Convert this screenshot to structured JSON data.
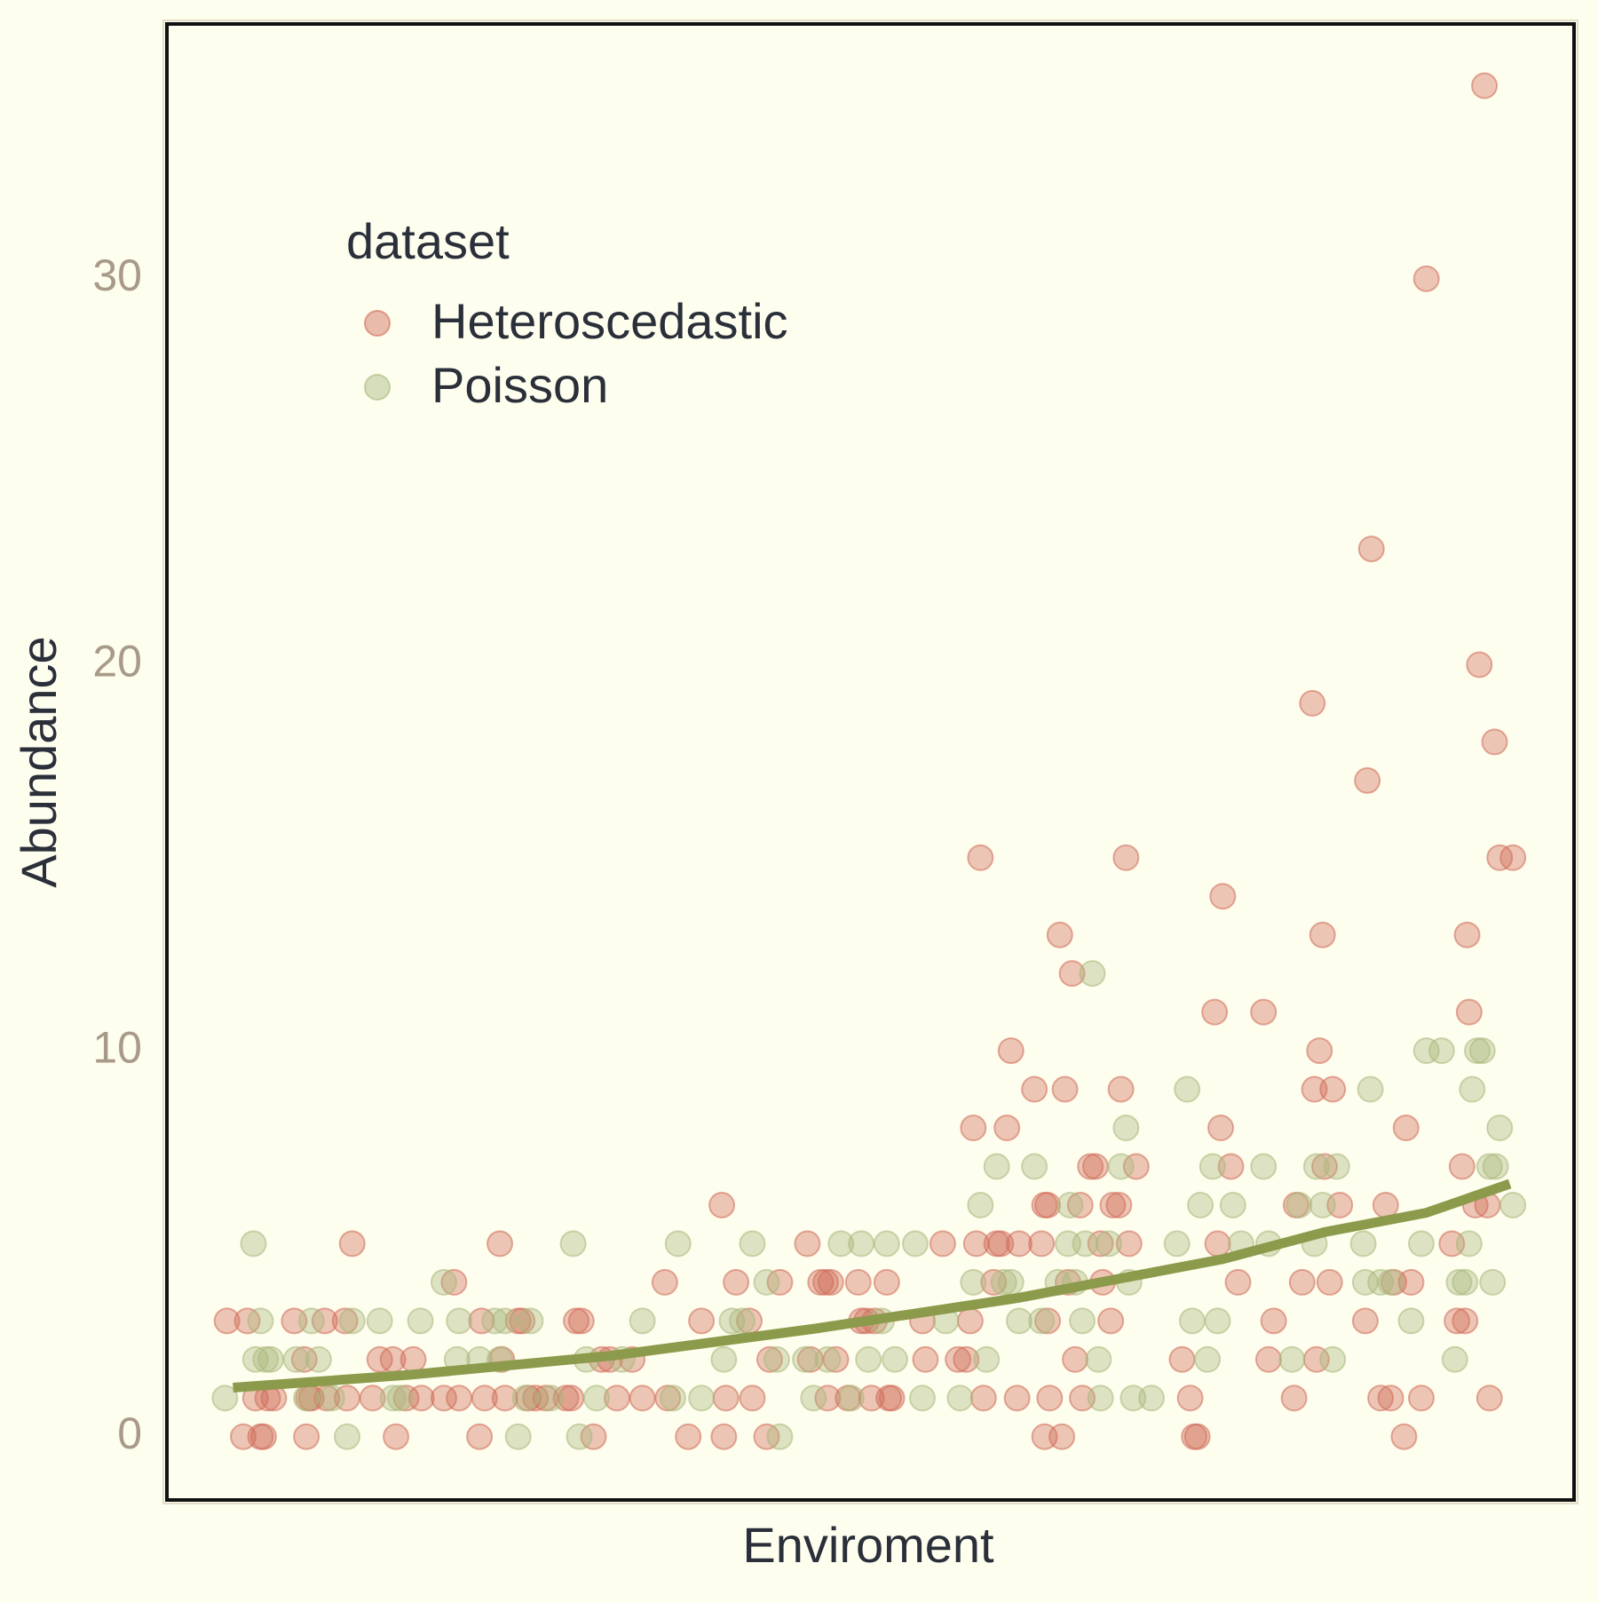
{
  "chart_data": {
    "type": "scatter",
    "x_label": "Enviroment",
    "y_label": "Abundance",
    "legend_title": "dataset",
    "legend": "top-left",
    "grid": false,
    "xlim": [
      163,
      1545
    ],
    "ylim": [
      -1.64,
      36.6
    ],
    "yticks": [
      0,
      10,
      20,
      30
    ],
    "series": [
      {
        "name": "Heteroscedastic",
        "color": "#cf6a58",
        "x": [
          222,
          242,
          238,
          250,
          255,
          258,
          262,
          268,
          288,
          298,
          300,
          302,
          305,
          318,
          320,
          338,
          340,
          345,
          365,
          372,
          385,
          388,
          398,
          405,
          413,
          435,
          445,
          450,
          470,
          472,
          475,
          490,
          492,
          495,
          508,
          512,
          518,
          525,
          535,
          555,
          560,
          565,
          570,
          582,
          590,
          598,
          605,
          620,
          630,
          652,
          655,
          675,
          688,
          708,
          710,
          712,
          722,
          735,
          738,
          752,
          755,
          765,
          792,
          795,
          805,
          810,
          812,
          815,
          820,
          832,
          842,
          845,
          850,
          855,
          858,
          870,
          872,
          875,
          905,
          908,
          925,
          940,
          948,
          952,
          955,
          958,
          962,
          965,
          975,
          978,
          982,
          988,
          992,
          998,
          1000,
          1015,
          1022,
          1025,
          1028,
          1030,
          1025,
          1028,
          1040,
          1042,
          1045,
          1048,
          1052,
          1055,
          1060,
          1062,
          1070,
          1075,
          1080,
          1082,
          1090,
          1092,
          1098,
          1100,
          1105,
          1108,
          1115,
          1160,
          1168,
          1172,
          1175,
          1192,
          1195,
          1198,
          1200,
          1208,
          1215,
          1240,
          1245,
          1250,
          1270,
          1272,
          1278,
          1288,
          1292,
          1295,
          1298,
          1300,
          1305,
          1308,
          1290,
          1315,
          1340,
          1342,
          1346,
          1355,
          1360,
          1365,
          1368,
          1378,
          1380,
          1385,
          1395,
          1400,
          1425,
          1430,
          1435,
          1438,
          1440,
          1442,
          1448,
          1452,
          1457,
          1460,
          1462,
          1467,
          1472,
          1485
        ],
        "values": [
          3,
          3,
          0,
          1,
          0,
          0,
          1,
          1,
          3,
          2,
          0,
          1,
          1,
          3,
          1,
          3,
          1,
          5,
          1,
          2,
          2,
          0,
          1,
          2,
          1,
          1,
          4,
          1,
          0,
          3,
          1,
          5,
          2,
          1,
          3,
          3,
          1,
          1,
          1,
          1,
          1,
          3,
          3,
          0,
          2,
          2,
          1,
          2,
          1,
          4,
          1,
          0,
          3,
          6,
          0,
          1,
          4,
          3,
          1,
          0,
          2,
          4,
          5,
          2,
          4,
          4,
          1,
          4,
          2,
          1,
          4,
          3,
          3,
          1,
          3,
          4,
          1,
          1,
          3,
          2,
          5,
          2,
          2,
          3,
          8,
          5,
          15,
          1,
          4,
          5,
          5,
          8,
          10,
          1,
          5,
          9,
          5,
          6,
          6,
          1,
          0,
          3,
          13,
          0,
          9,
          4,
          12,
          2,
          6,
          1,
          7,
          7,
          5,
          4,
          3,
          6,
          6,
          9,
          15,
          5,
          7,
          2,
          1,
          0,
          0,
          11,
          5,
          8,
          14,
          7,
          4,
          11,
          2,
          3,
          1,
          6,
          4,
          19,
          2,
          10,
          13,
          7,
          4,
          9,
          9,
          6,
          3,
          17,
          23,
          1,
          6,
          1,
          4,
          0,
          8,
          4,
          1,
          30,
          5,
          3,
          7,
          3,
          13,
          11,
          6,
          20,
          35,
          6,
          1,
          18,
          15,
          15
        ]
      },
      {
        "name": "Poisson",
        "color": "#a9b77c",
        "x": [
          220,
          248,
          250,
          255,
          260,
          265,
          290,
          300,
          305,
          312,
          325,
          340,
          345,
          372,
          385,
          392,
          412,
          435,
          448,
          450,
          470,
          485,
          490,
          495,
          508,
          515,
          520,
          540,
          562,
          568,
          575,
          585,
          610,
          630,
          660,
          665,
          688,
          710,
          718,
          728,
          738,
          752,
          762,
          765,
          790,
          798,
          812,
          825,
          835,
          845,
          852,
          865,
          870,
          878,
          898,
          905,
          928,
          942,
          955,
          962,
          968,
          978,
          985,
          992,
          1000,
          1015,
          1022,
          1038,
          1048,
          1050,
          1055,
          1062,
          1065,
          1072,
          1078,
          1080,
          1088,
          1100,
          1105,
          1108,
          1112,
          1130,
          1155,
          1165,
          1170,
          1178,
          1185,
          1190,
          1195,
          1210,
          1218,
          1240,
          1245,
          1268,
          1275,
          1290,
          1292,
          1298,
          1308,
          1312,
          1338,
          1340,
          1345,
          1355,
          1365,
          1385,
          1395,
          1400,
          1415,
          1428,
          1432,
          1438,
          1442,
          1445,
          1450,
          1455,
          1462,
          1465,
          1468,
          1472,
          1485
        ],
        "values": [
          1,
          5,
          2,
          3,
          2,
          2,
          2,
          1,
          3,
          2,
          1,
          0,
          3,
          3,
          1,
          1,
          3,
          4,
          2,
          3,
          2,
          3,
          2,
          3,
          0,
          1,
          3,
          1,
          5,
          0,
          2,
          1,
          2,
          3,
          1,
          5,
          1,
          2,
          3,
          3,
          5,
          4,
          2,
          0,
          2,
          1,
          2,
          5,
          1,
          5,
          2,
          3,
          5,
          2,
          5,
          1,
          3,
          1,
          4,
          6,
          2,
          7,
          4,
          4,
          3,
          7,
          3,
          4,
          5,
          6,
          4,
          3,
          5,
          12,
          2,
          1,
          5,
          7,
          8,
          4,
          1,
          1,
          5,
          9,
          3,
          6,
          2,
          7,
          3,
          6,
          5,
          7,
          5,
          2,
          6,
          5,
          7,
          6,
          2,
          7,
          5,
          4,
          9,
          4,
          4,
          3,
          5,
          10,
          10,
          2,
          4,
          4,
          5,
          9,
          10,
          10,
          7,
          4,
          7,
          8,
          6
        ]
      }
    ],
    "trend": {
      "color": "#8c9a4b",
      "x": [
        228,
        400,
        600,
        800,
        1000,
        1100,
        1200,
        1300,
        1400,
        1482
      ],
      "values": [
        1.27,
        1.6,
        2.1,
        2.8,
        3.6,
        4.1,
        4.6,
        5.3,
        5.8,
        6.55
      ]
    }
  }
}
